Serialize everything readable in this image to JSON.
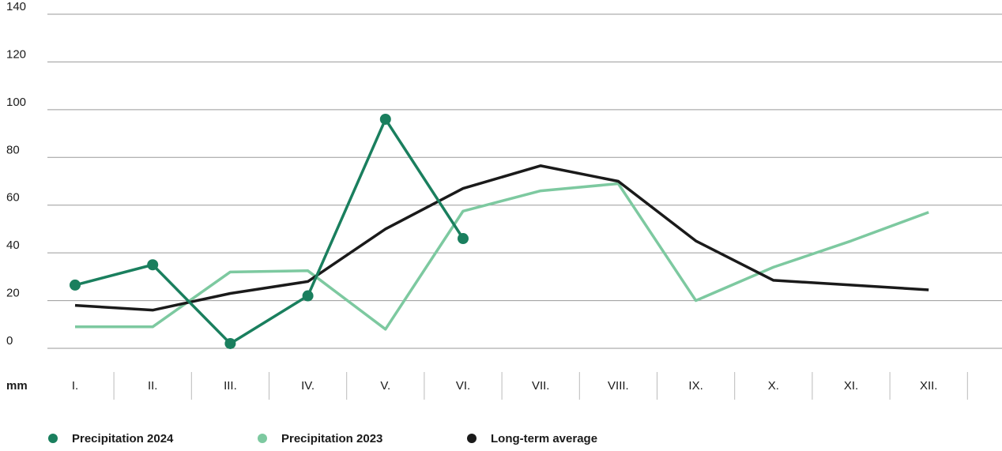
{
  "chart_data": {
    "type": "line",
    "y_unit": "mm",
    "categories": [
      "I.",
      "II.",
      "III.",
      "IV.",
      "V.",
      "VI.",
      "VII.",
      "VIII.",
      "IX.",
      "X.",
      "XI.",
      "XII."
    ],
    "series": [
      {
        "name": "Precipitation 2024",
        "color": "#1a7f5e",
        "markers": true,
        "values": [
          26.5,
          35,
          2,
          22,
          96,
          46,
          null,
          null,
          null,
          null,
          null,
          null
        ]
      },
      {
        "name": "Precipitation 2023",
        "color": "#7dc9a0",
        "markers": false,
        "values": [
          9,
          9,
          32,
          32.5,
          8,
          57.5,
          66,
          69,
          20,
          34,
          45,
          57
        ]
      },
      {
        "name": "Long-term average",
        "color": "#1a1a1a",
        "markers": false,
        "values": [
          18,
          16,
          23,
          28,
          50,
          67,
          76.5,
          70,
          45,
          28.5,
          26.5,
          24.5
        ]
      }
    ],
    "ylim": [
      0,
      140
    ],
    "yticks": [
      0,
      20,
      40,
      60,
      80,
      100,
      120,
      140
    ],
    "grid": true
  }
}
